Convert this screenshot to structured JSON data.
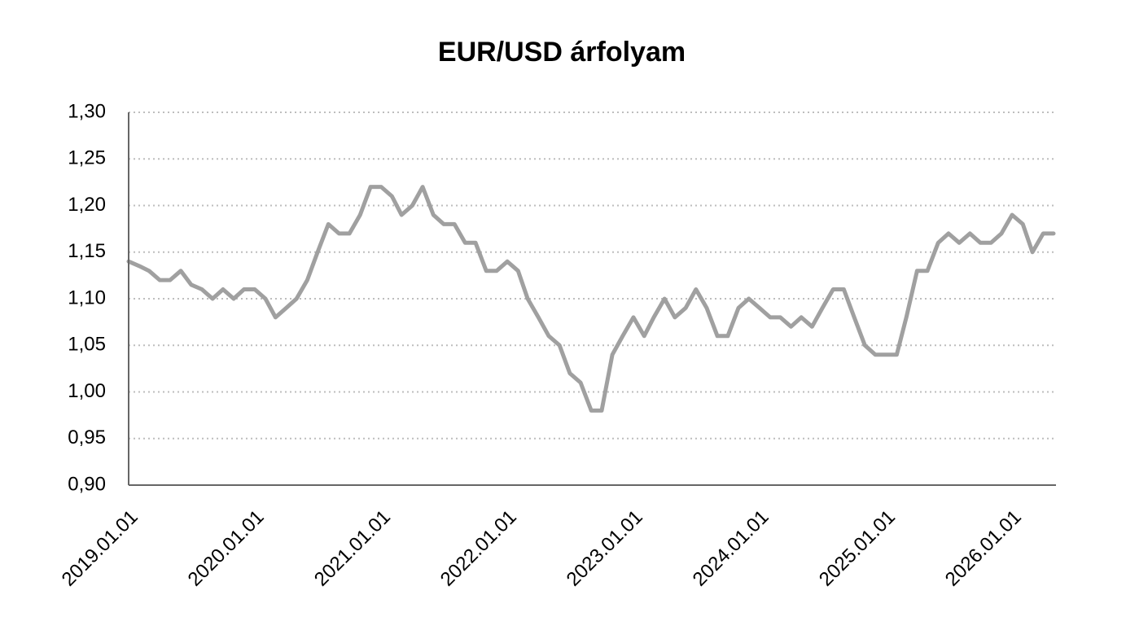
{
  "chart_data": {
    "type": "line",
    "title": "EUR/USD árfolyam",
    "x": [
      "2019.01.01",
      "2019.02.01",
      "2019.03.01",
      "2019.04.01",
      "2019.05.01",
      "2019.06.01",
      "2019.07.01",
      "2019.08.01",
      "2019.09.01",
      "2019.10.01",
      "2019.11.01",
      "2019.12.01",
      "2020.01.01",
      "2020.02.01",
      "2020.03.01",
      "2020.04.01",
      "2020.05.01",
      "2020.06.01",
      "2020.07.01",
      "2020.08.01",
      "2020.09.01",
      "2020.10.01",
      "2020.11.01",
      "2020.12.01",
      "2021.01.01",
      "2021.02.01",
      "2021.03.01",
      "2021.04.01",
      "2021.05.01",
      "2021.06.01",
      "2021.07.01",
      "2021.08.01",
      "2021.09.01",
      "2021.10.01",
      "2021.11.01",
      "2021.12.01",
      "2022.01.01",
      "2022.02.01",
      "2022.03.01",
      "2022.04.01",
      "2022.05.01",
      "2022.06.01",
      "2022.07.01",
      "2022.08.01",
      "2022.09.01",
      "2022.10.01",
      "2022.11.01",
      "2022.12.01",
      "2023.01.01",
      "2023.02.01",
      "2023.03.01",
      "2023.04.01",
      "2023.05.01",
      "2023.06.01",
      "2023.07.01",
      "2023.08.01",
      "2023.09.01",
      "2023.10.01",
      "2023.11.01",
      "2023.12.01",
      "2024.01.01",
      "2024.02.01",
      "2024.03.01",
      "2024.04.01",
      "2024.05.01",
      "2024.06.01",
      "2024.07.01",
      "2024.08.01",
      "2024.09.01",
      "2024.10.01",
      "2024.11.01",
      "2024.12.01",
      "2025.01.01",
      "2025.02.01",
      "2025.03.01",
      "2025.04.01",
      "2025.05.01",
      "2025.06.01",
      "2025.07.01",
      "2025.08.01",
      "2025.09.01",
      "2025.10.01",
      "2025.11.01",
      "2025.12.01",
      "2026.01.01",
      "2026.02.01",
      "2026.03.01",
      "2026.04.01",
      "2026.05.01"
    ],
    "series": [
      {
        "color": "#a0a0a0",
        "values": [
          1.14,
          1.135,
          1.13,
          1.12,
          1.12,
          1.13,
          1.115,
          1.11,
          1.1,
          1.11,
          1.1,
          1.11,
          1.11,
          1.1,
          1.08,
          1.09,
          1.1,
          1.12,
          1.15,
          1.18,
          1.17,
          1.17,
          1.19,
          1.22,
          1.22,
          1.21,
          1.19,
          1.2,
          1.22,
          1.19,
          1.18,
          1.18,
          1.16,
          1.16,
          1.13,
          1.13,
          1.14,
          1.13,
          1.1,
          1.08,
          1.06,
          1.05,
          1.02,
          1.01,
          0.98,
          0.98,
          1.04,
          1.06,
          1.08,
          1.06,
          1.08,
          1.1,
          1.08,
          1.09,
          1.11,
          1.09,
          1.06,
          1.06,
          1.09,
          1.1,
          1.09,
          1.08,
          1.08,
          1.07,
          1.08,
          1.07,
          1.09,
          1.11,
          1.11,
          1.08,
          1.05,
          1.04,
          1.04,
          1.04,
          1.08,
          1.13,
          1.13,
          1.16,
          1.17,
          1.16,
          1.17,
          1.16,
          1.16,
          1.17,
          1.19,
          1.18,
          1.15,
          1.17,
          1.17
        ]
      }
    ],
    "xlim": [
      "2019.01.01",
      "2026.05.08"
    ],
    "xticks": [
      "2019.01.01",
      "2020.01.01",
      "2021.01.01",
      "2022.01.01",
      "2023.01.01",
      "2024.01.01",
      "2025.01.01",
      "2026.01.01"
    ],
    "ylim": [
      0.9,
      1.3
    ],
    "yticks": [
      {
        "value": 0.9,
        "label": "0,90"
      },
      {
        "value": 0.95,
        "label": "0,95"
      },
      {
        "value": 1.0,
        "label": "1,00"
      },
      {
        "value": 1.05,
        "label": "1,05"
      },
      {
        "value": 1.1,
        "label": "1,10"
      },
      {
        "value": 1.15,
        "label": "1,15"
      },
      {
        "value": 1.2,
        "label": "1,20"
      },
      {
        "value": 1.25,
        "label": "1,25"
      },
      {
        "value": 1.3,
        "label": "1,30"
      }
    ],
    "grid": true
  }
}
